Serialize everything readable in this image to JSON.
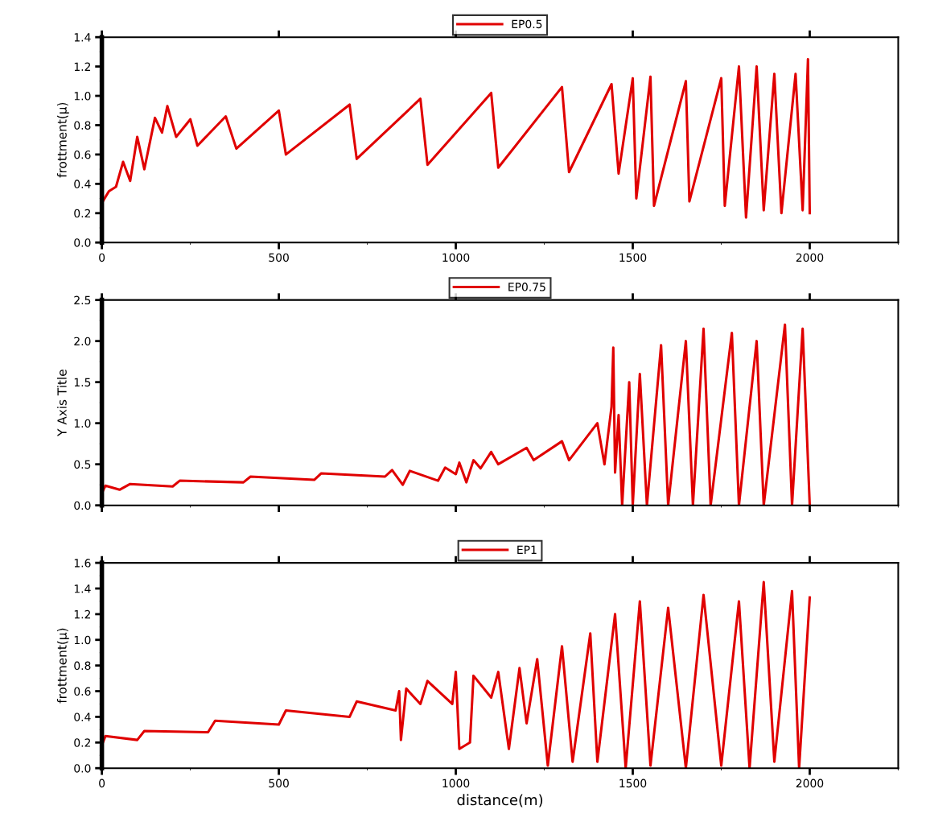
{
  "chart_data": [
    {
      "type": "line",
      "ylabel": "frottment(μ)",
      "xlim": [
        0,
        2250
      ],
      "xticks": [
        0,
        500,
        1000,
        1500,
        2000
      ],
      "ylim": [
        0,
        1.4
      ],
      "yticks": [
        {
          "value": 0,
          "label": "0.0"
        },
        0.2,
        0.4,
        0.6,
        0.8,
        {
          "value": 1,
          "label": "1.0"
        },
        1.2,
        1.4
      ],
      "grid": false,
      "legend": "top",
      "marker": "none",
      "line_style": "solid",
      "series": [
        {
          "name": "EP0.5",
          "color": "#e00000",
          "x": [
            0,
            20,
            40,
            60,
            80,
            100,
            120,
            150,
            170,
            185,
            210,
            250,
            270,
            350,
            380,
            500,
            520,
            700,
            720,
            900,
            920,
            1100,
            1120,
            1300,
            1320,
            1440,
            1460,
            1500,
            1510,
            1550,
            1560,
            1650,
            1660,
            1750,
            1760,
            1800,
            1820,
            1850,
            1870,
            1900,
            1920,
            1960,
            1980,
            1995,
            2000
          ],
          "values": [
            0.27,
            0.35,
            0.38,
            0.55,
            0.42,
            0.72,
            0.5,
            0.85,
            0.75,
            0.93,
            0.72,
            0.84,
            0.66,
            0.86,
            0.64,
            0.9,
            0.6,
            0.94,
            0.57,
            0.98,
            0.53,
            1.02,
            0.51,
            1.06,
            0.48,
            1.08,
            0.47,
            1.12,
            0.3,
            1.13,
            0.25,
            1.1,
            0.28,
            1.12,
            0.25,
            1.2,
            0.17,
            1.2,
            0.22,
            1.15,
            0.2,
            1.15,
            0.22,
            1.25,
            0.2
          ]
        }
      ]
    },
    {
      "type": "line",
      "ylabel": "Y Axis Title",
      "xlim": [
        0,
        2250
      ],
      "xticks": [
        0,
        500,
        1000,
        1500,
        2000
      ],
      "ylim": [
        0,
        2.5
      ],
      "yticks": [
        {
          "value": 0,
          "label": "0.0"
        },
        0.5,
        {
          "value": 1,
          "label": "1.0"
        },
        1.5,
        {
          "value": 2,
          "label": "2.0"
        },
        2.5
      ],
      "tick_labels": "y",
      "grid": false,
      "legend": "top",
      "marker": "none",
      "line_style": "solid",
      "series": [
        {
          "name": "EP0.75",
          "color": "#e00000",
          "x": [
            0,
            10,
            50,
            80,
            200,
            220,
            400,
            420,
            600,
            620,
            800,
            820,
            850,
            870,
            950,
            970,
            1000,
            1010,
            1030,
            1050,
            1070,
            1100,
            1120,
            1200,
            1220,
            1300,
            1320,
            1400,
            1420,
            1440,
            1445,
            1450,
            1460,
            1470,
            1490,
            1500,
            1520,
            1540,
            1580,
            1600,
            1650,
            1670,
            1700,
            1720,
            1780,
            1800,
            1850,
            1870,
            1930,
            1950,
            1980,
            2000
          ],
          "values": [
            0.15,
            0.24,
            0.19,
            0.26,
            0.23,
            0.3,
            0.28,
            0.35,
            0.31,
            0.39,
            0.35,
            0.43,
            0.25,
            0.42,
            0.3,
            0.46,
            0.38,
            0.52,
            0.28,
            0.55,
            0.45,
            0.65,
            0.5,
            0.7,
            0.55,
            0.78,
            0.55,
            1.0,
            0.5,
            1.2,
            1.92,
            0.4,
            1.1,
            0.0,
            1.5,
            0.0,
            1.6,
            0.0,
            1.95,
            0.0,
            2.0,
            0.0,
            2.15,
            0.0,
            2.1,
            0.0,
            2.0,
            0.0,
            2.2,
            0.0,
            2.15,
            0.0
          ]
        }
      ]
    },
    {
      "type": "line",
      "xlabel": "distance(m)",
      "ylabel": "frottment(μ)",
      "xlim": [
        0,
        2250
      ],
      "xticks": [
        0,
        500,
        1000,
        1500,
        2000
      ],
      "ylim": [
        0,
        1.6
      ],
      "yticks": [
        {
          "value": 0,
          "label": "0.0"
        },
        0.2,
        0.4,
        0.6,
        0.8,
        {
          "value": 1,
          "label": "1.0"
        },
        1.2,
        1.4,
        1.6
      ],
      "grid": false,
      "legend": "top",
      "marker": "none",
      "line_style": "solid",
      "series": [
        {
          "name": "EP1",
          "color": "#e00000",
          "x": [
            0,
            10,
            100,
            120,
            300,
            320,
            500,
            520,
            700,
            720,
            830,
            840,
            845,
            860,
            900,
            920,
            990,
            1000,
            1010,
            1040,
            1050,
            1100,
            1120,
            1150,
            1180,
            1200,
            1230,
            1260,
            1300,
            1330,
            1380,
            1400,
            1450,
            1480,
            1520,
            1550,
            1600,
            1650,
            1700,
            1750,
            1800,
            1830,
            1870,
            1900,
            1950,
            1970,
            2000
          ],
          "values": [
            0.18,
            0.25,
            0.22,
            0.29,
            0.28,
            0.37,
            0.34,
            0.45,
            0.4,
            0.52,
            0.45,
            0.6,
            0.22,
            0.62,
            0.5,
            0.68,
            0.5,
            0.75,
            0.15,
            0.2,
            0.72,
            0.55,
            0.75,
            0.15,
            0.78,
            0.35,
            0.85,
            0.02,
            0.95,
            0.05,
            1.05,
            0.05,
            1.2,
            0.0,
            1.3,
            0.02,
            1.25,
            0.0,
            1.35,
            0.02,
            1.3,
            0.0,
            1.45,
            0.05,
            1.38,
            0.0,
            1.33
          ]
        }
      ]
    }
  ]
}
